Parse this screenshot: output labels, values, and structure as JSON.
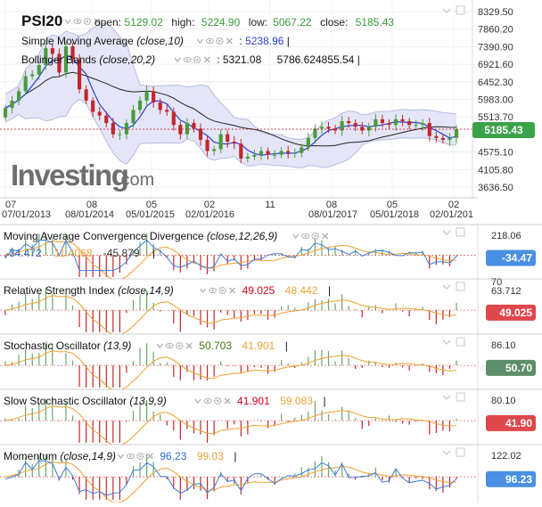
{
  "main": {
    "symbol": "PSI20",
    "ohlc": [
      {
        "label": "open:",
        "value": "5129.02"
      },
      {
        "label": "high:",
        "value": "5224.90"
      },
      {
        "label": "low:",
        "value": "5067.22"
      },
      {
        "label": "close:",
        "value": "5185.43"
      }
    ],
    "indicators": [
      {
        "name": "Simple Moving Average",
        "params": "(close,10)",
        "values": [
          ": 5238.96 |"
        ]
      },
      {
        "name": "Bollinger Bands",
        "params": "(close,20,2)",
        "values": [
          ": 5321.08",
          "5786.624855.54 |"
        ]
      }
    ],
    "price_axis": [
      "8329.50",
      "7860.20",
      "7390.90",
      "6921.60",
      "6452.30",
      "5983.00",
      "5513.70",
      "5185.43",
      "4575.10",
      "4105.80",
      "3636.50"
    ],
    "price_badge": "5185.43",
    "logo": "Investing.com"
  },
  "time_axis": {
    "top": [
      "07",
      "08",
      "05",
      "02",
      "11",
      "08",
      "05",
      "02"
    ],
    "bottom": [
      "07/01/2013",
      "08/01/2014",
      "05/01/2015",
      "02/01/2016",
      "08/01/2017",
      "05/01/2018",
      "02/01/201"
    ]
  },
  "panels": [
    {
      "name": "Moving Average Convergence Divergence",
      "params": "(close,12,26,9)",
      "values": [
        {
          "v": "-34.472",
          "c": "#2a6fd6"
        },
        {
          "v": "11.4068",
          "c": "#e8a33a"
        },
        {
          "v": "-45.879",
          "c": "#333333"
        }
      ],
      "axis": [
        "218.06"
      ],
      "badge": "-34.47",
      "badge_color": "#4a90e2"
    },
    {
      "name": "Relative Strength Index",
      "params": "(close,14,9)",
      "values": [
        {
          "v": "49.025",
          "c": "#d0021b"
        },
        {
          "v": "48.442",
          "c": "#e8a33a"
        }
      ],
      "axis": [
        "70",
        "63.712"
      ],
      "badge": "49.025",
      "badge_color": "#e0474c"
    },
    {
      "name": "Stochastic Oscillator",
      "params": "(13,9)",
      "values": [
        {
          "v": "50.703",
          "c": "#417505"
        },
        {
          "v": "41.901",
          "c": "#e8a33a"
        }
      ],
      "axis": [
        "86.10"
      ],
      "badge": "50.70",
      "badge_color": "#5e8f6a"
    },
    {
      "name": "Slow Stochastic Oscillator",
      "params": "(13,9,9)",
      "values": [
        {
          "v": "41.901",
          "c": "#d0021b"
        },
        {
          "v": "59.083",
          "c": "#e8a33a"
        }
      ],
      "axis": [
        "80.10"
      ],
      "badge": "41.90",
      "badge_color": "#e0474c"
    },
    {
      "name": "Momentum",
      "params": "(close,14,9)",
      "values": [
        {
          "v": "96.23",
          "c": "#2a6fd6"
        },
        {
          "v": "99.03",
          "c": "#e8a33a"
        }
      ],
      "axis": [
        "122.02"
      ],
      "badge": "96.23",
      "badge_color": "#4a90e2"
    }
  ],
  "colors": {
    "up": "#4a9b3c",
    "down": "#c0272d",
    "sma": "#2a3fd6",
    "band_fill": "#e4e6f7",
    "band_line": "#b7bbe0",
    "mid": "#222222",
    "orange": "#f0a030",
    "blue": "#3b7de0"
  },
  "icons": [
    "chevron-down-icon",
    "eye-icon",
    "gear-icon",
    "close-icon"
  ],
  "chart_data": {
    "type": "candlestick",
    "x": [
      "07/2013",
      "08/2013",
      "09/2013",
      "10/2013",
      "11/2013",
      "12/2013",
      "01/2014",
      "02/2014",
      "03/2014",
      "04/2014",
      "05/2014",
      "06/2014",
      "07/2014",
      "08/2014",
      "09/2014",
      "10/2014",
      "11/2014",
      "12/2014",
      "01/2015",
      "02/2015",
      "03/2015",
      "04/2015",
      "05/2015",
      "06/2015",
      "07/2015",
      "08/2015",
      "09/2015",
      "10/2015",
      "11/2015",
      "12/2015",
      "01/2016",
      "02/2016",
      "03/2016",
      "04/2016",
      "05/2016",
      "06/2016",
      "07/2016",
      "08/2016",
      "09/2016",
      "10/2016",
      "11/2016",
      "12/2016",
      "01/2017",
      "02/2017",
      "03/2017",
      "04/2017",
      "05/2017",
      "06/2017",
      "07/2017",
      "08/2017",
      "09/2017",
      "10/2017",
      "11/2017",
      "12/2017",
      "01/2018",
      "02/2018",
      "03/2018",
      "04/2018",
      "05/2018",
      "06/2018",
      "07/2018",
      "08/2018",
      "09/2018",
      "10/2018",
      "11/2018",
      "12/2018",
      "01/2019",
      "02/2019"
    ],
    "open": [
      5500,
      5750,
      5950,
      6200,
      6600,
      6650,
      6900,
      7350,
      7200,
      6700,
      7400,
      7050,
      6250,
      5950,
      5650,
      5550,
      5350,
      5050,
      5050,
      5350,
      5700,
      5950,
      6200,
      5900,
      5700,
      5650,
      5300,
      5050,
      5350,
      5200,
      4900,
      4600,
      4650,
      5050,
      4850,
      4800,
      4400,
      4450,
      4500,
      4600,
      4500,
      4500,
      4600,
      4550,
      4550,
      4700,
      4950,
      5200,
      5250,
      5200,
      5150,
      5400,
      5350,
      5250,
      5150,
      5250,
      5450,
      5350,
      5300,
      5450,
      5400,
      5300,
      5300,
      5350,
      5000,
      4950,
      4900,
      4950
    ],
    "close": [
      5750,
      5950,
      6200,
      6600,
      6650,
      6900,
      7350,
      7200,
      6700,
      7400,
      7050,
      6250,
      5950,
      5650,
      5550,
      5350,
      5050,
      5050,
      5350,
      5700,
      5950,
      6200,
      5900,
      5700,
      5650,
      5300,
      5050,
      5350,
      5200,
      4900,
      4600,
      4650,
      5050,
      4850,
      4800,
      4400,
      4450,
      4500,
      4600,
      4500,
      4500,
      4600,
      4550,
      4550,
      4700,
      4950,
      5200,
      5250,
      5200,
      5150,
      5400,
      5350,
      5250,
      5150,
      5250,
      5450,
      5350,
      5300,
      5450,
      5400,
      5300,
      5300,
      5350,
      5000,
      4950,
      4900,
      4950,
      5185.43
    ],
    "sma10_last": 5238.96,
    "bollinger": {
      "mid_last": 5321.08,
      "upper_last": 5786.62,
      "lower_last": 4855.54
    },
    "ylim": [
      3500,
      8500
    ]
  }
}
